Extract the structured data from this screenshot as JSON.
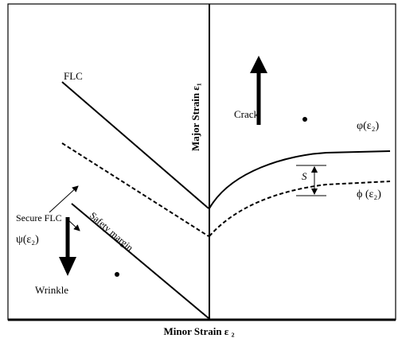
{
  "diagram": {
    "labels": {
      "flc": "FLC",
      "y_axis": "Major Strain ε₁",
      "crack": "Crack",
      "upper_curve": "φ(ε₂)",
      "s": "S",
      "lower_curve": "ϕ (ε₂)",
      "secure_flc": "Secure FLC",
      "psi": "ψ(ε₂)",
      "safety_margin": "Safety margin",
      "wrinkle": "Wrinkle",
      "x_axis": "Minor Strain ε ₂"
    }
  }
}
